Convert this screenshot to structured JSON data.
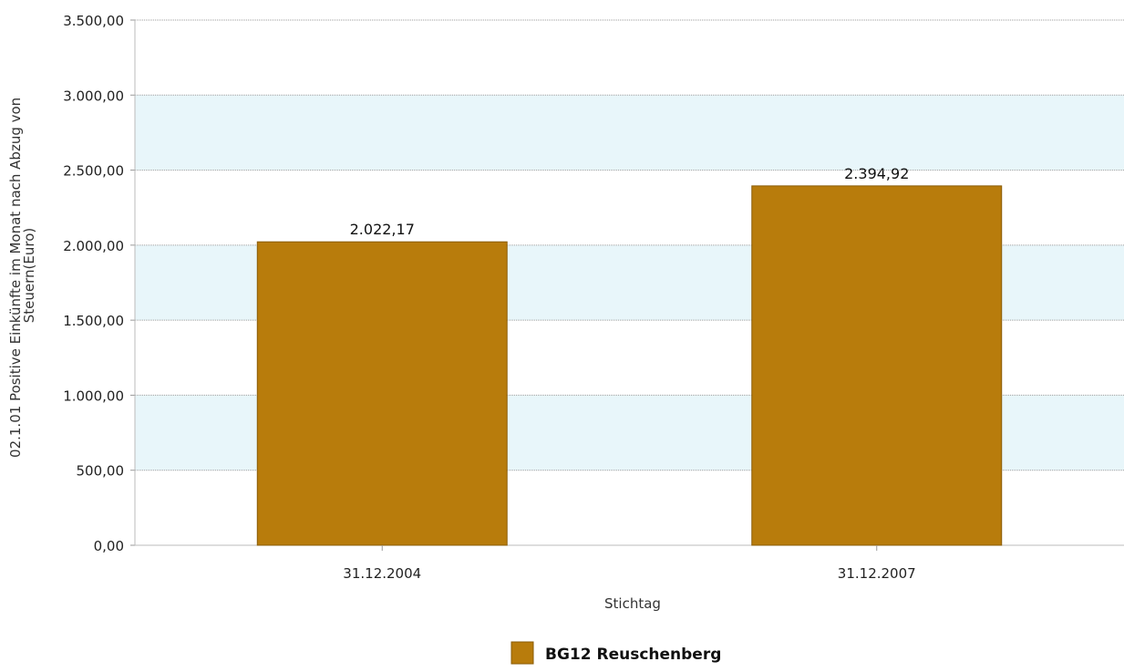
{
  "chart_data": {
    "type": "bar",
    "categories": [
      "31.12.2004",
      "31.12.2007"
    ],
    "series": [
      {
        "name": "BG12 Reuschenberg",
        "values": [
          2022.17,
          2394.92
        ],
        "value_labels": [
          "2.022,17",
          "2.394,92"
        ],
        "color": "#b87c0c"
      }
    ],
    "xlabel": "Stichtag",
    "ylabel_lines": [
      "02.1.01 Positive Einkünfte im Monat nach Abzug von",
      "Steuern(Euro)"
    ],
    "ylim": [
      0,
      3500
    ],
    "y_ticks": [
      0,
      500,
      1000,
      1500,
      2000,
      2500,
      3000,
      3500
    ],
    "y_tick_labels": [
      "0,00",
      "500,00",
      "1.000,00",
      "1.500,00",
      "2.000,00",
      "2.500,00",
      "3.000,00",
      "3.500,00"
    ],
    "grid": true,
    "band_color": "#e8f6fa",
    "legend_position": "bottom-center"
  }
}
